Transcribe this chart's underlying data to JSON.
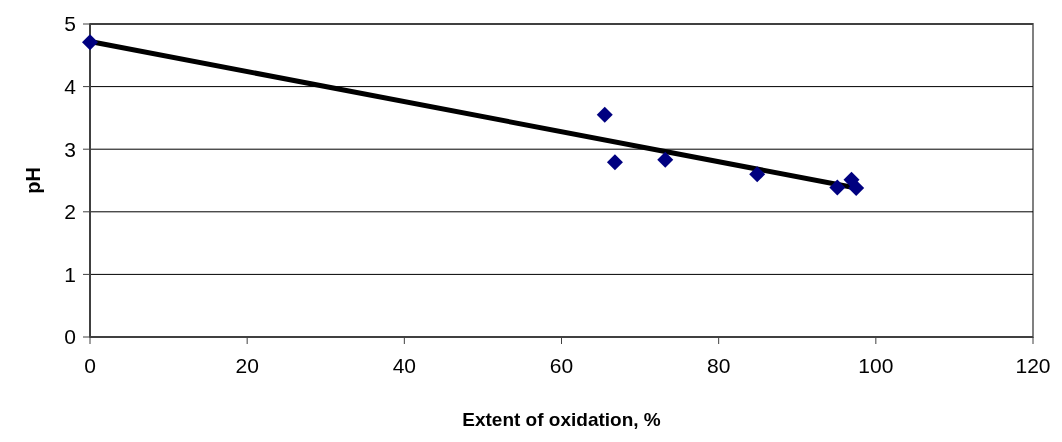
{
  "chart_data": {
    "type": "scatter",
    "xlabel": "Extent of oxidation, %",
    "ylabel": "pH",
    "xlim": [
      0,
      120
    ],
    "xticks": [
      0,
      20,
      40,
      60,
      80,
      100,
      120
    ],
    "ylim": [
      0,
      5
    ],
    "yticks": [
      0,
      1,
      2,
      3,
      4,
      5
    ],
    "grid": "y",
    "marker": "diamond",
    "series": [
      {
        "color": "#000080",
        "x": [
          0,
          65.5,
          66.8,
          73.2,
          84.9,
          95.1,
          96.9,
          97.5
        ],
        "values": [
          4.71,
          3.55,
          2.79,
          2.83,
          2.6,
          2.39,
          2.51,
          2.38
        ]
      },
      {
        "type": "line",
        "color": "#000000",
        "x": [
          0,
          97.5
        ],
        "values": [
          4.72,
          2.38
        ],
        "marker": "none",
        "line_style": "solid"
      }
    ]
  }
}
